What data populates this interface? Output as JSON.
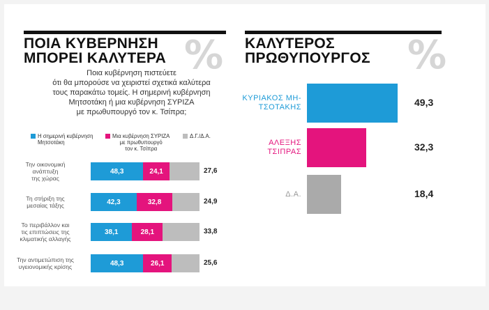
{
  "colors": {
    "blue": "#1e9bd7",
    "magenta": "#e4147d",
    "gray": "#bdbdbd",
    "title": "#111111"
  },
  "left": {
    "title_line1": "ΠΟΙΑ ΚΥΒΕΡΝΗΣΗ",
    "title_line2": "ΜΠΟΡΕΙ ΚΑΛΥΤΕΡΑ",
    "percent_symbol": "%",
    "intro_lines": [
      "Ποια κυβέρνηση πιστεύετε",
      "ότι θα μπορούσε να χειριστεί σχετικά καλύτερα",
      "τους παρακάτω τομείς. Η σημερινή κυβέρνηση",
      "Μητσοτάκη ή μια κυβέρνηση ΣΥΡΙΖΑ",
      "με πρωθυπουργό τον κ. Τσίπρα;"
    ],
    "legend": [
      {
        "lines": [
          "Η σημερινή κυβέρνηση",
          "Μητσοτάκη"
        ],
        "color": "#1e9bd7"
      },
      {
        "lines": [
          "Μια κυβέρνηση ΣΥΡΙΖΑ",
          "με πρωθυπουργό",
          "τον κ. Τσίπρα"
        ],
        "color": "#e4147d"
      },
      {
        "lines": [
          "Δ.Γ./Δ.Α."
        ],
        "color": "#bdbdbd"
      }
    ]
  },
  "right": {
    "title_line1": "ΚΑΛΥΤΕΡΟΣ",
    "title_line2": "ΠΡΩΘΥΠΟΥΡΓΟΣ",
    "percent_symbol": "%"
  },
  "chart_data": [
    {
      "type": "bar",
      "orientation": "horizontal",
      "stacked": true,
      "categories": [
        [
          "Την οικονομική",
          "ανάπτυξη",
          "της χώρας"
        ],
        [
          "Τη στήριξη της",
          "μεσαίας τάξης"
        ],
        [
          "Το περιβάλλον και",
          "τις επιπτώσεις της",
          "κλιματικής αλλαγής"
        ],
        [
          "Την αντιμετώπιση της",
          "υγειονομικής κρίσης"
        ]
      ],
      "series": [
        {
          "name": "Η σημερινή κυβέρνηση Μητσοτάκη",
          "color": "#1e9bd7",
          "values": [
            48.3,
            42.3,
            38.1,
            48.3
          ],
          "labels": [
            "48,3",
            "42,3",
            "38,1",
            "48,3"
          ]
        },
        {
          "name": "Μια κυβέρνηση ΣΥΡΙΖΑ με πρωθυπουργό τον κ. Τσίπρα",
          "color": "#e4147d",
          "values": [
            24.1,
            32.8,
            28.1,
            26.1
          ],
          "labels": [
            "24,1",
            "32,8",
            "28,1",
            "26,1"
          ]
        },
        {
          "name": "Δ.Γ./Δ.Α.",
          "color": "#bdbdbd",
          "values": [
            27.6,
            24.9,
            33.8,
            25.6
          ],
          "labels": [
            "27,6",
            "24,9",
            "33,8",
            "25,6"
          ]
        }
      ],
      "xlim": [
        0,
        100
      ]
    },
    {
      "type": "bar",
      "orientation": "horizontal",
      "title": "ΚΑΛΥΤΕΡΟΣ ΠΡΩΘΥΠΟΥΡΓΟΣ",
      "categories": [
        [
          "ΚΥΡΙΑΚΟΣ ΜΗ-",
          "ΤΣΟΤΑΚΗΣ"
        ],
        [
          "ΑΛΕΞΗΣ",
          "ΤΣΙΠΡΑΣ"
        ],
        [
          "Δ.Α."
        ]
      ],
      "values": [
        49.3,
        32.3,
        18.4
      ],
      "labels": [
        "49,3",
        "32,3",
        "18,4"
      ],
      "colors": [
        "#1e9bd7",
        "#e4147d",
        "#aaaaaa"
      ],
      "xlim": [
        0,
        49.3
      ]
    }
  ]
}
